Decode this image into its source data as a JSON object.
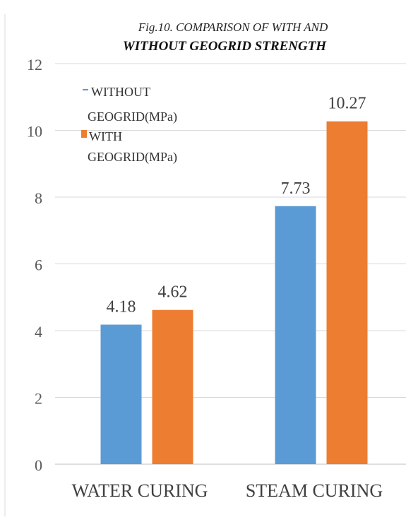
{
  "chart_data": {
    "type": "bar",
    "title_line1": "Fig.10. COMPARISON OF WITH AND",
    "title_line2": "WITHOUT GEOGRID STRENGTH",
    "categories": [
      "WATER CURING",
      "STEAM CURING"
    ],
    "series": [
      {
        "name": "WITHOUT GEOGRID(MPa)",
        "values": [
          4.18,
          7.73
        ],
        "color": "#5b9bd5"
      },
      {
        "name": "WITH GEOGRID(MPa)",
        "values": [
          4.62,
          10.27
        ],
        "color": "#ed7d31"
      }
    ],
    "data_labels": [
      [
        "4.18",
        "7.73"
      ],
      [
        "4.62",
        "10.27"
      ]
    ],
    "ylim": [
      0,
      12
    ],
    "yticks": [
      "0",
      "2",
      "4",
      "6",
      "8",
      "10",
      "12"
    ],
    "grid": true,
    "legend_position": "top-left"
  }
}
